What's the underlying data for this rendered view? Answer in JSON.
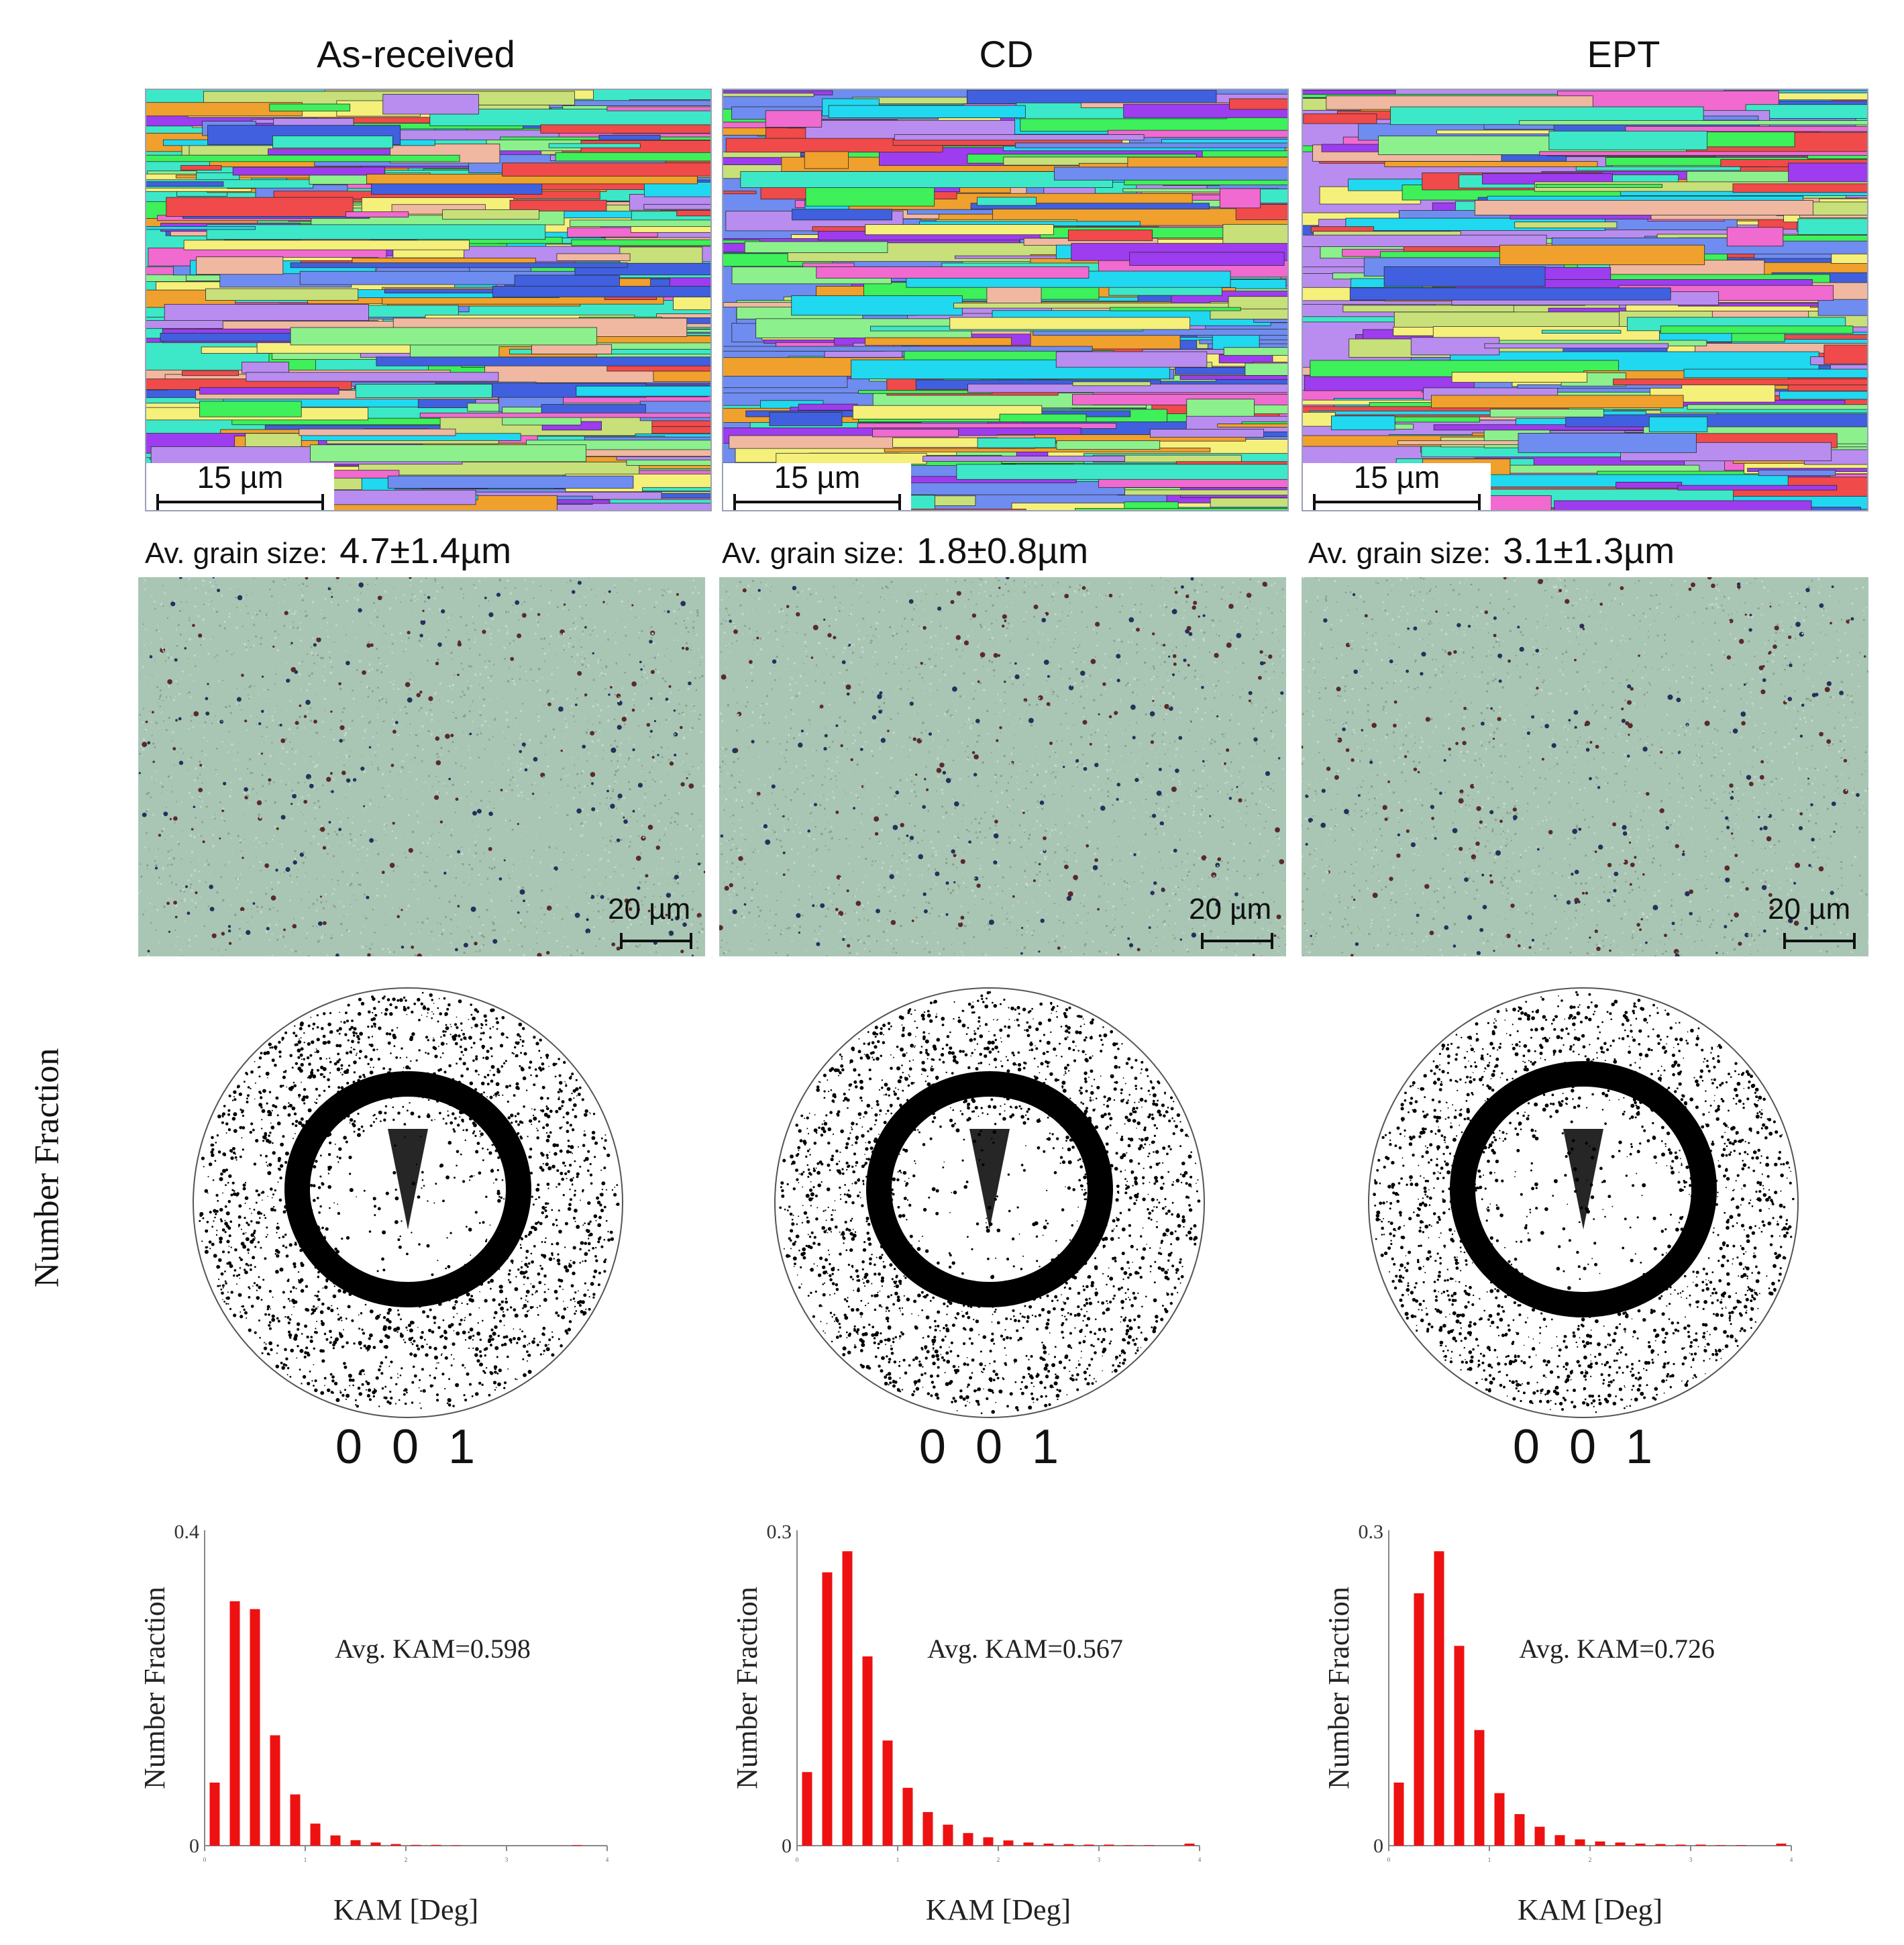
{
  "side_label": "Number Fraction",
  "panels": [
    {
      "title": "As-received",
      "ebsd_scale": "15 µm",
      "grain_label": "Av. grain size:",
      "grain_value": "4.7±1.4µm",
      "optical_scale": "20 µm",
      "pole_label": "0 0 1"
    },
    {
      "title": "CD",
      "ebsd_scale": "15 µm",
      "grain_label": "Av. grain size:",
      "grain_value": "1.8±0.8µm",
      "optical_scale": "20 µm",
      "pole_label": "0 0 1"
    },
    {
      "title": "EPT",
      "ebsd_scale": "15 µm",
      "grain_label": "Av. grain size:",
      "grain_value": "3.1±1.3µm",
      "optical_scale": "20 µm",
      "pole_label": "0 0 1"
    }
  ],
  "colors": {
    "bar": "#ee1111",
    "ebsd_palette": [
      "#3ef05a",
      "#3ce8c8",
      "#6f8cf0",
      "#b98cf0",
      "#f06ad0",
      "#f0a02c",
      "#f5f07a",
      "#20d8f0",
      "#9e3cf0",
      "#f04a4a",
      "#8cf08c",
      "#f0b8a0",
      "#4060e0",
      "#c8e07a"
    ],
    "optical_bg": "#a9c6b5"
  },
  "chart_data": [
    {
      "type": "bar",
      "title": "",
      "annotation": "Avg. KAM=0.598",
      "xlabel": "KAM [Deg]",
      "ylabel": "Number Fraction",
      "ylim": [
        0,
        0.4
      ],
      "y_ticks": [
        "0.4",
        "0"
      ],
      "xlim": [
        0,
        4
      ],
      "x_ticks": [
        0,
        1,
        2,
        3,
        4
      ],
      "bin_width": 0.2,
      "values": [
        0.08,
        0.31,
        0.3,
        0.14,
        0.065,
        0.028,
        0.013,
        0.007,
        0.004,
        0.002,
        0.001,
        0.001,
        0.0005,
        0,
        0,
        0,
        0,
        0,
        0.0008,
        0
      ]
    },
    {
      "type": "bar",
      "title": "",
      "annotation": "Avg. KAM=0.567",
      "xlabel": "KAM [Deg]",
      "ylabel": "Number Fraction",
      "ylim": [
        0,
        0.3
      ],
      "y_ticks": [
        "0.3",
        "0"
      ],
      "xlim": [
        0,
        4
      ],
      "x_ticks": [
        0,
        1,
        2,
        3,
        4
      ],
      "bin_width": 0.2,
      "values": [
        0.07,
        0.26,
        0.28,
        0.18,
        0.1,
        0.055,
        0.032,
        0.02,
        0.012,
        0.008,
        0.005,
        0.003,
        0.002,
        0.0015,
        0.001,
        0.001,
        0.0005,
        0.0005,
        0,
        0.002
      ]
    },
    {
      "type": "bar",
      "title": "",
      "annotation": "Avg. KAM=0.726",
      "xlabel": "KAM [Deg]",
      "ylabel": "Number Fraction",
      "ylim": [
        0,
        0.3
      ],
      "y_ticks": [
        "0.3",
        "0"
      ],
      "xlim": [
        0,
        4
      ],
      "x_ticks": [
        0,
        1,
        2,
        3,
        4
      ],
      "bin_width": 0.2,
      "values": [
        0.06,
        0.24,
        0.28,
        0.19,
        0.11,
        0.05,
        0.03,
        0.018,
        0.01,
        0.006,
        0.004,
        0.003,
        0.002,
        0.0015,
        0.001,
        0.001,
        0.0005,
        0.0005,
        0,
        0.002
      ]
    }
  ]
}
